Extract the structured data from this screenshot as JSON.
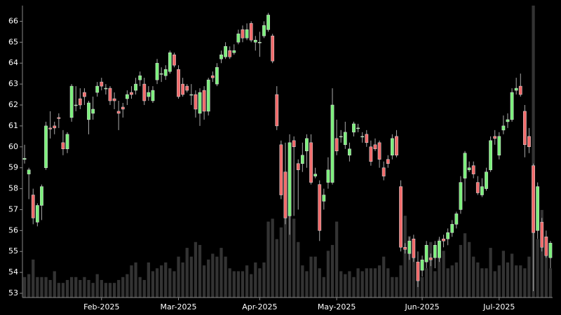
{
  "chart_data": {
    "type": "candlestick",
    "categories": [
      null,
      null,
      null,
      null,
      null,
      null,
      null,
      null,
      null,
      null,
      null,
      null,
      null,
      null,
      null,
      null,
      null,
      null,
      "Feb-2025",
      null,
      null,
      null,
      null,
      null,
      null,
      null,
      null,
      null,
      null,
      null,
      null,
      null,
      null,
      null,
      null,
      null,
      "Mar-2025",
      null,
      null,
      null,
      null,
      null,
      null,
      null,
      null,
      null,
      null,
      null,
      null,
      null,
      null,
      null,
      null,
      null,
      null,
      "Apr-2025",
      null,
      null,
      null,
      null,
      null,
      null,
      null,
      null,
      null,
      null,
      null,
      null,
      null,
      null,
      null,
      null,
      null,
      "May-2025",
      null,
      null,
      null,
      null,
      null,
      null,
      null,
      null,
      null,
      null,
      null,
      null,
      null,
      null,
      null,
      null,
      null,
      null,
      null,
      "Jun-2025",
      null,
      null,
      null,
      null,
      null,
      null,
      null,
      null,
      null,
      null,
      null,
      null,
      null,
      null,
      null,
      null,
      null,
      "Jul-2025",
      null,
      null,
      null,
      null,
      null,
      null,
      null,
      null,
      null,
      null,
      null,
      null
    ],
    "open": [
      59.4,
      58.7,
      57.7,
      56.4,
      57.2,
      59.0,
      60.9,
      61.0,
      61.4,
      60.2,
      59.9,
      61.4,
      62.0,
      62.3,
      62.6,
      61.3,
      61.6,
      62.6,
      63.1,
      62.8,
      62.8,
      62.3,
      61.7,
      61.9,
      62.3,
      62.6,
      62.7,
      63.2,
      63.0,
      62.4,
      62.2,
      63.2,
      63.5,
      63.4,
      63.6,
      64.4,
      63.7,
      63.0,
      62.9,
      62.5,
      62.5,
      61.6,
      62.7,
      61.7,
      63.4,
      63.0,
      64.2,
      64.3,
      64.6,
      64.5,
      65.0,
      65.6,
      65.2,
      65.9,
      65.0,
      65.0,
      65.3,
      65.6,
      65.3,
      62.5,
      60.1,
      58.8,
      56.7,
      60.3,
      59.2,
      59.2,
      59.8,
      60.2,
      58.6,
      58.2,
      57.4,
      58.3,
      58.3,
      60.4,
      60.5,
      60.1,
      59.6,
      60.7,
      60.9,
      60.5,
      60.6,
      60.0,
      60.1,
      60.2,
      59.0,
      59.4,
      59.6,
      60.5,
      58.1,
      55.2,
      54.9,
      55.6,
      54.5,
      54.1,
      54.5,
      54.7,
      54.7,
      54.7,
      55.6,
      55.6,
      55.9,
      56.3,
      57.0,
      58.5,
      58.9,
      59.1,
      58.3,
      57.7,
      58.0,
      58.9,
      60.5,
      59.6,
      60.8,
      61.2,
      61.3,
      62.7,
      62.9,
      61.7,
      60.5,
      59.1,
      56.0,
      56.4,
      55.7,
      54.7
    ],
    "high": [
      60.1,
      59.0,
      58.0,
      57.3,
      58.2,
      61.2,
      61.7,
      61.2,
      61.6,
      60.8,
      60.7,
      63.0,
      62.9,
      62.8,
      62.8,
      62.2,
      62.4,
      63.1,
      63.3,
      63.0,
      62.9,
      62.6,
      62.2,
      62.1,
      62.7,
      62.9,
      63.3,
      63.6,
      63.3,
      62.9,
      62.9,
      64.2,
      63.8,
      63.9,
      64.6,
      64.5,
      63.9,
      63.3,
      63.0,
      63.0,
      62.7,
      62.8,
      62.9,
      63.3,
      63.6,
      64.0,
      64.6,
      65.0,
      64.8,
      64.9,
      65.6,
      65.8,
      65.9,
      66.0,
      65.3,
      65.5,
      66.0,
      66.4,
      65.4,
      62.9,
      60.3,
      60.2,
      60.6,
      60.5,
      59.4,
      60.2,
      60.6,
      60.6,
      59.0,
      58.4,
      58.0,
      59.5,
      62.8,
      61.3,
      60.8,
      61.2,
      60.2,
      61.2,
      61.1,
      60.7,
      60.8,
      60.3,
      60.4,
      60.3,
      59.3,
      59.6,
      60.6,
      60.8,
      58.4,
      55.4,
      55.7,
      55.8,
      55.0,
      54.8,
      55.5,
      54.9,
      55.5,
      55.7,
      55.8,
      56.1,
      56.5,
      56.9,
      58.6,
      59.8,
      59.3,
      59.3,
      58.6,
      58.5,
      59.0,
      60.5,
      60.8,
      60.7,
      61.5,
      61.6,
      62.8,
      63.3,
      63.5,
      62.0,
      60.9,
      59.2,
      58.3,
      56.6,
      56.0,
      55.5
    ],
    "low": [
      59.2,
      57.5,
      56.3,
      56.2,
      56.5,
      58.9,
      60.4,
      60.6,
      60.9,
      59.6,
      59.7,
      61.2,
      61.7,
      61.8,
      62.0,
      60.6,
      61.3,
      62.4,
      62.7,
      62.5,
      62.0,
      61.8,
      60.8,
      61.4,
      62.0,
      62.3,
      62.5,
      62.9,
      62.0,
      62.2,
      62.1,
      63.0,
      63.1,
      63.2,
      63.5,
      63.8,
      62.3,
      62.4,
      62.6,
      62.0,
      61.4,
      61.0,
      61.3,
      61.5,
      63.1,
      62.9,
      64.0,
      64.2,
      64.2,
      64.4,
      64.9,
      65.0,
      65.1,
      65.0,
      64.6,
      64.3,
      65.2,
      65.5,
      64.0,
      60.8,
      57.5,
      56.3,
      55.8,
      56.7,
      57.0,
      58.8,
      59.0,
      58.2,
      58.5,
      55.5,
      57.0,
      58.0,
      58.2,
      59.6,
      60.2,
      59.9,
      59.3,
      60.5,
      60.7,
      60.2,
      60.0,
      59.1,
      59.8,
      59.0,
      58.4,
      59.0,
      59.4,
      59.5,
      55.0,
      54.9,
      54.6,
      54.5,
      53.3,
      53.8,
      54.2,
      54.3,
      54.2,
      54.5,
      55.2,
      55.3,
      55.7,
      56.1,
      56.8,
      57.4,
      58.8,
      58.5,
      57.7,
      57.6,
      57.9,
      58.8,
      60.1,
      59.4,
      60.6,
      60.9,
      61.2,
      62.5,
      62.4,
      59.5,
      59.7,
      53.1,
      55.6,
      55.0,
      54.7,
      54.2
    ],
    "close": [
      59.45,
      58.9,
      56.6,
      57.2,
      58.1,
      61.0,
      60.85,
      60.9,
      61.35,
      59.9,
      60.6,
      62.9,
      62.0,
      62.0,
      62.4,
      62.1,
      61.8,
      62.9,
      62.9,
      62.8,
      62.2,
      62.2,
      61.6,
      61.8,
      62.5,
      62.5,
      63.0,
      63.4,
      62.2,
      62.6,
      62.7,
      64.0,
      63.5,
      63.7,
      64.5,
      63.9,
      62.4,
      62.5,
      62.7,
      62.5,
      61.8,
      62.6,
      61.7,
      63.2,
      63.3,
      63.8,
      64.4,
      64.8,
      64.3,
      64.6,
      65.4,
      65.2,
      65.6,
      65.1,
      65.1,
      65.0,
      65.8,
      66.3,
      64.1,
      61.0,
      57.7,
      56.6,
      60.2,
      60.0,
      58.9,
      59.6,
      60.4,
      58.3,
      58.7,
      56.0,
      57.7,
      58.9,
      62.0,
      59.8,
      60.5,
      60.7,
      59.9,
      61.1,
      60.9,
      60.5,
      60.2,
      59.3,
      59.9,
      59.4,
      58.6,
      59.2,
      60.4,
      59.6,
      55.2,
      55.1,
      55.5,
      54.7,
      53.6,
      54.6,
      55.3,
      54.6,
      55.3,
      55.5,
      55.5,
      55.9,
      56.3,
      56.8,
      58.3,
      59.7,
      59.0,
      58.7,
      57.8,
      58.1,
      58.8,
      60.3,
      60.4,
      60.5,
      61.0,
      61.3,
      62.6,
      62.8,
      62.5,
      60.1,
      60.0,
      55.9,
      58.1,
      55.2,
      54.8,
      55.4
    ],
    "volume": [
      7,
      8,
      13,
      7,
      7,
      7,
      6,
      9,
      5,
      5,
      6,
      7,
      7,
      6,
      7,
      6,
      5,
      8,
      6,
      5,
      5,
      5,
      6,
      7,
      8,
      11,
      12,
      7,
      6,
      12,
      9,
      10,
      11,
      12,
      10,
      9,
      14,
      12,
      17,
      14,
      19,
      18,
      11,
      13,
      15,
      14,
      17,
      14,
      10,
      9,
      9,
      9,
      11,
      8,
      12,
      10,
      12,
      26,
      27,
      20,
      24,
      28,
      29,
      27,
      19,
      11,
      9,
      14,
      14,
      10,
      7,
      16,
      18,
      26,
      9,
      8,
      9,
      7,
      10,
      9,
      10,
      10,
      10,
      11,
      14,
      10,
      7,
      7,
      11,
      28,
      21,
      17,
      9,
      7,
      10,
      19,
      9,
      20,
      16,
      10,
      11,
      12,
      18,
      22,
      19,
      14,
      12,
      10,
      10,
      17,
      9,
      11,
      16,
      12,
      15,
      11,
      11,
      10,
      14,
      100,
      20,
      30,
      18,
      10
    ],
    "up_color": "#7cf07c",
    "down_color": "#f26b6b",
    "volume_color": "#333333",
    "ylim": [
      52.8,
      66.75
    ],
    "yticks": [
      53,
      54,
      55,
      56,
      57,
      58,
      59,
      60,
      61,
      62,
      63,
      64,
      65,
      66
    ],
    "y2lim": [
      0,
      100
    ]
  }
}
